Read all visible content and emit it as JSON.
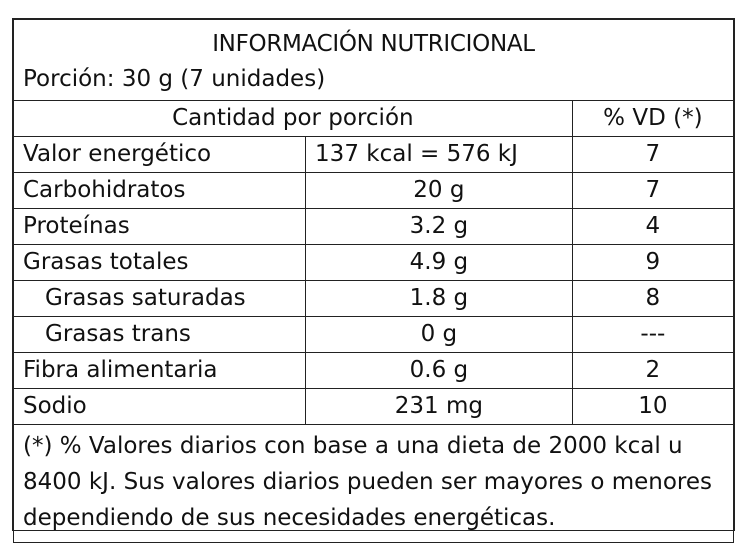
{
  "title": "INFORMACIÓN NUTRICIONAL",
  "serving": "Porción: 30 g (7 unidades)",
  "header": {
    "amount_label": "Cantidad por porción",
    "dv_label": "% VD (*)"
  },
  "rows": [
    {
      "name": "Valor energético",
      "amount": "137 kcal = 576 kJ",
      "dv": "7"
    },
    {
      "name": "Carbohidratos",
      "amount": "20 g",
      "dv": "7"
    },
    {
      "name": "Proteínas",
      "amount": "3.2 g",
      "dv": "4"
    },
    {
      "name": "Grasas totales",
      "amount": "4.9 g",
      "dv": "9"
    },
    {
      "name": "Grasas saturadas",
      "amount": "1.8 g",
      "dv": "8"
    },
    {
      "name": "Grasas trans",
      "amount": "0 g",
      "dv": "---"
    },
    {
      "name": "Fibra alimentaria",
      "amount": "0.6 g",
      "dv": "2"
    },
    {
      "name": "Sodio",
      "amount": "231 mg",
      "dv": "10"
    }
  ],
  "footnote": "(*) % Valores diarios con base a una dieta de 2000 kcal u 8400 kJ. Sus valores diarios pueden ser mayores o menores dependiendo de sus necesidades energéticas."
}
